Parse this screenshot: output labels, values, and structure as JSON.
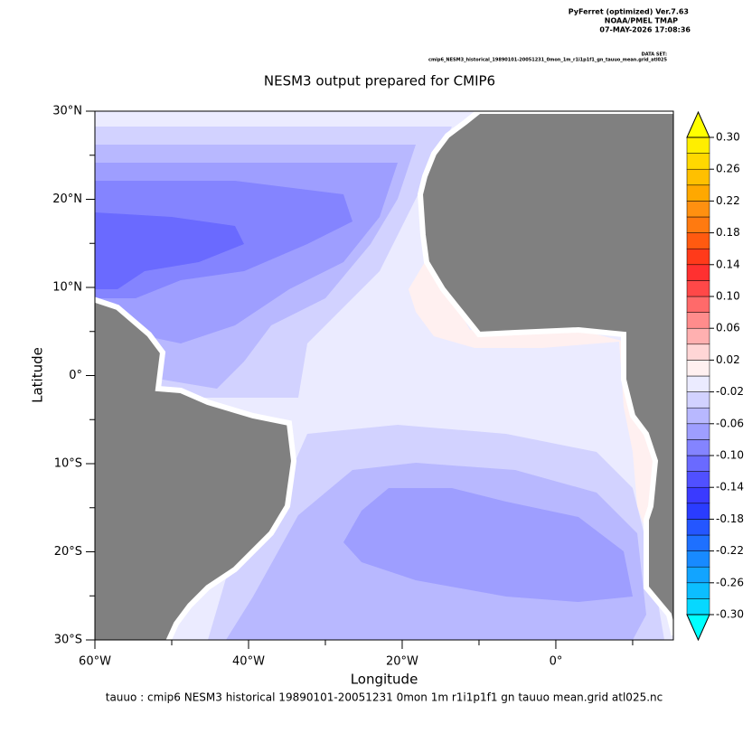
{
  "header": {
    "lines": [
      "PyFerret (optimized) Ver.7.63",
      "NOAA/PMEL TMAP",
      "07-MAY-2026 17:08:36"
    ],
    "dataset_label": "DATA SET:",
    "dataset": "cmip6_NESM3_historical_19890101-20051231_0mon_1m_r1i1p1f1_gn_tauuo_mean.grid_atl025"
  },
  "chart_data": {
    "type": "map",
    "title": "NESM3 output prepared for CMIP6",
    "x_label": "Longitude",
    "y_label": "Latitude",
    "xlim": [
      -60,
      15.3
    ],
    "ylim": [
      -30,
      30
    ],
    "xticks": [
      {
        "value": -60,
        "label": "60°W"
      },
      {
        "value": -40,
        "label": "40°W"
      },
      {
        "value": -20,
        "label": "20°W"
      },
      {
        "value": 0,
        "label": "0°"
      }
    ],
    "xminor": [
      -50,
      -30,
      -10,
      10
    ],
    "yticks": [
      {
        "value": 30,
        "label": "30°N"
      },
      {
        "value": 20,
        "label": "20°N"
      },
      {
        "value": 10,
        "label": "10°N"
      },
      {
        "value": 0,
        "label": "0°"
      },
      {
        "value": -10,
        "label": "10°S"
      },
      {
        "value": -20,
        "label": "20°S"
      },
      {
        "value": -30,
        "label": "30°S"
      }
    ],
    "yminor": [
      25,
      15,
      5,
      -5,
      -15,
      -25
    ],
    "colorbar": {
      "lim": [
        -0.3,
        0.3
      ],
      "colors": [
        "#06d8ff",
        "#0cbeff",
        "#12a4ff",
        "#188aff",
        "#1e70ff",
        "#2456ff",
        "#2a3cff",
        "#3a3aff",
        "#5050ff",
        "#6a6aff",
        "#8484ff",
        "#9e9eff",
        "#b8b8ff",
        "#d2d2ff",
        "#ebebff",
        "#fff0f0",
        "#ffd6d6",
        "#ffb0b0",
        "#ff8c8c",
        "#ff6a6a",
        "#ff4848",
        "#ff3030",
        "#ff3a1a",
        "#ff5a10",
        "#ff7a10",
        "#ff9010",
        "#ffa800",
        "#ffc000",
        "#ffd800",
        "#ffee00"
      ],
      "under_color": "#00ffff",
      "over_color": "#ffff00",
      "ticks": [
        {
          "value": 0.3,
          "label": "0.30"
        },
        {
          "value": 0.26,
          "label": "0.26"
        },
        {
          "value": 0.22,
          "label": "0.22"
        },
        {
          "value": 0.18,
          "label": "0.18"
        },
        {
          "value": 0.14,
          "label": "0.14"
        },
        {
          "value": 0.1,
          "label": "0.10"
        },
        {
          "value": 0.06,
          "label": "0.06"
        },
        {
          "value": 0.02,
          "label": "0.02"
        },
        {
          "value": -0.02,
          "label": "-0.02"
        },
        {
          "value": -0.06,
          "label": "-0.06"
        },
        {
          "value": -0.1,
          "label": "-0.10"
        },
        {
          "value": -0.14,
          "label": "-0.14"
        },
        {
          "value": -0.18,
          "label": "-0.18"
        },
        {
          "value": -0.22,
          "label": "-0.22"
        },
        {
          "value": -0.26,
          "label": "-0.26"
        },
        {
          "value": -0.3,
          "label": "-0.30"
        }
      ]
    },
    "footer": "tauuo : cmip6 NESM3 historical 19890101-20051231 0mon 1m r1i1p1f1 gn tauuo mean.grid atl025.nc"
  }
}
